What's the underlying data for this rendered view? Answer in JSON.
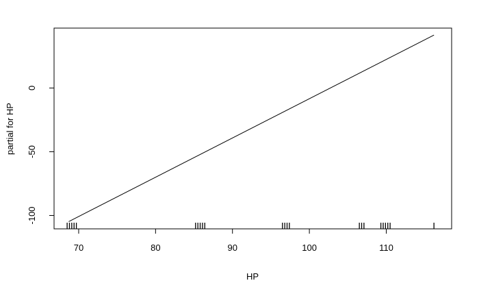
{
  "chart_data": {
    "type": "line",
    "title": "",
    "xlabel": "HP",
    "ylabel": "partial for HP",
    "xlim": [
      66.8,
      118.5
    ],
    "ylim": [
      -110.5,
      47.0
    ],
    "grid": false,
    "line_color": "#000000",
    "x_ticks": [
      {
        "value": 70,
        "label": "70"
      },
      {
        "value": 80,
        "label": "80"
      },
      {
        "value": 90,
        "label": "90"
      },
      {
        "value": 100,
        "label": "100"
      },
      {
        "value": 110,
        "label": "110"
      }
    ],
    "y_ticks": [
      {
        "value": -100,
        "label": "-100"
      },
      {
        "value": -50,
        "label": "-50"
      },
      {
        "value": 0,
        "label": "0"
      }
    ],
    "series": [
      {
        "x": [
          68.7,
          116.2
        ],
        "y": [
          -104.8,
          41.5
        ]
      }
    ],
    "rug": [
      68.5,
      68.8,
      69.1,
      69.4,
      69.7,
      85.2,
      85.5,
      85.8,
      86.1,
      86.4,
      96.5,
      96.8,
      97.1,
      97.4,
      106.5,
      106.8,
      107.1,
      109.3,
      109.6,
      109.9,
      110.2,
      110.5,
      116.2
    ]
  }
}
